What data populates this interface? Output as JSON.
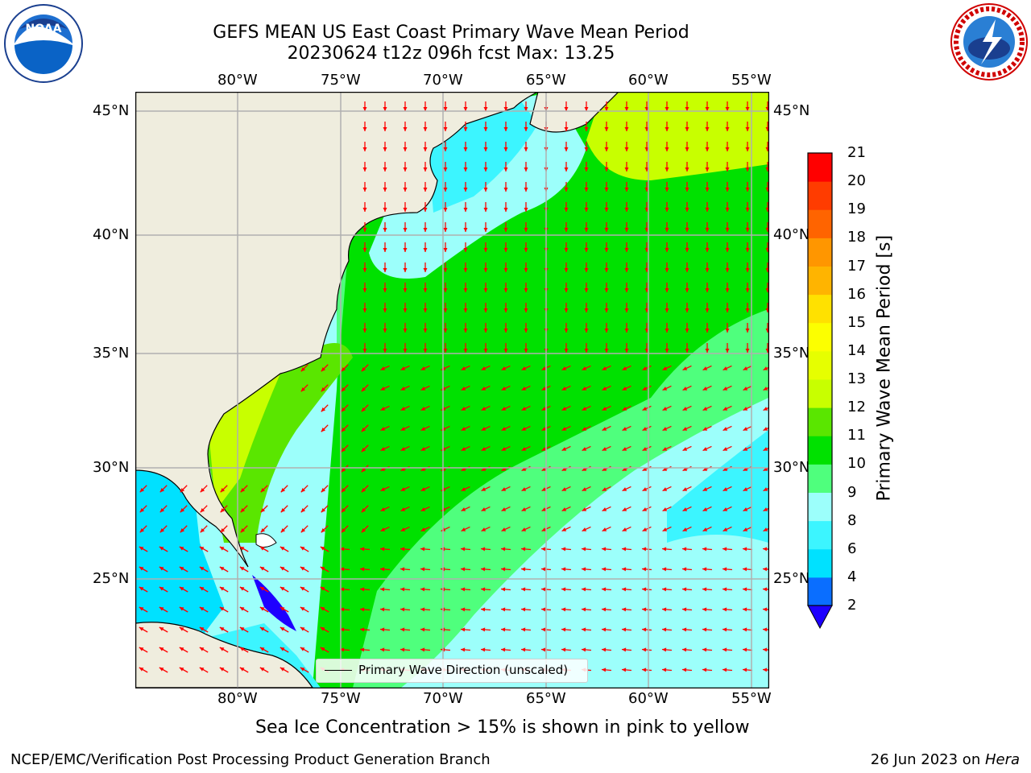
{
  "title": {
    "line1": "GEFS MEAN US East Coast Primary Wave Mean Period",
    "line2": "20230624 t12z 096h fcst   Max: 13.25"
  },
  "logos": {
    "left": {
      "name": "noaa-logo",
      "text": "NOAA"
    },
    "right": {
      "name": "nws-logo",
      "text": "NATIONAL WEATHER SERVICE"
    }
  },
  "map": {
    "lon_labels": [
      "80°W",
      "75°W",
      "70°W",
      "65°W",
      "60°W",
      "55°W"
    ],
    "lat_labels": [
      "45°N",
      "40°N",
      "35°N",
      "30°N",
      "25°N"
    ],
    "lon_range": [
      -85,
      -54
    ],
    "lat_range": [
      20.5,
      46
    ],
    "legend_label": "Primary Wave Direction (unscaled)",
    "land_color": "#efedde",
    "arrow_color": "#ff0000"
  },
  "colorbar": {
    "title": "Primary Wave Mean Period [s]",
    "tick_labels": [
      "2",
      "4",
      "6",
      "8",
      "9",
      "10",
      "11",
      "12",
      "13",
      "14",
      "15",
      "16",
      "17",
      "18",
      "19",
      "20",
      "21"
    ],
    "colors": [
      "#0a6eff",
      "#00e1ff",
      "#3cf5ff",
      "#9cfffb",
      "#4fff7d",
      "#00e100",
      "#5ae600",
      "#c8ff00",
      "#e6ff00",
      "#fcff00",
      "#ffe100",
      "#ffb400",
      "#ff9600",
      "#ff6400",
      "#ff3c00",
      "#ff0000"
    ],
    "under_color": "#1e00ff"
  },
  "note": "Sea Ice Concentration > 15% is shown in pink to yellow",
  "footer": {
    "left": "NCEP/EMC/Verification Post Processing Product Generation Branch",
    "date": "26 Jun 2023 on ",
    "machine": "Hera"
  }
}
